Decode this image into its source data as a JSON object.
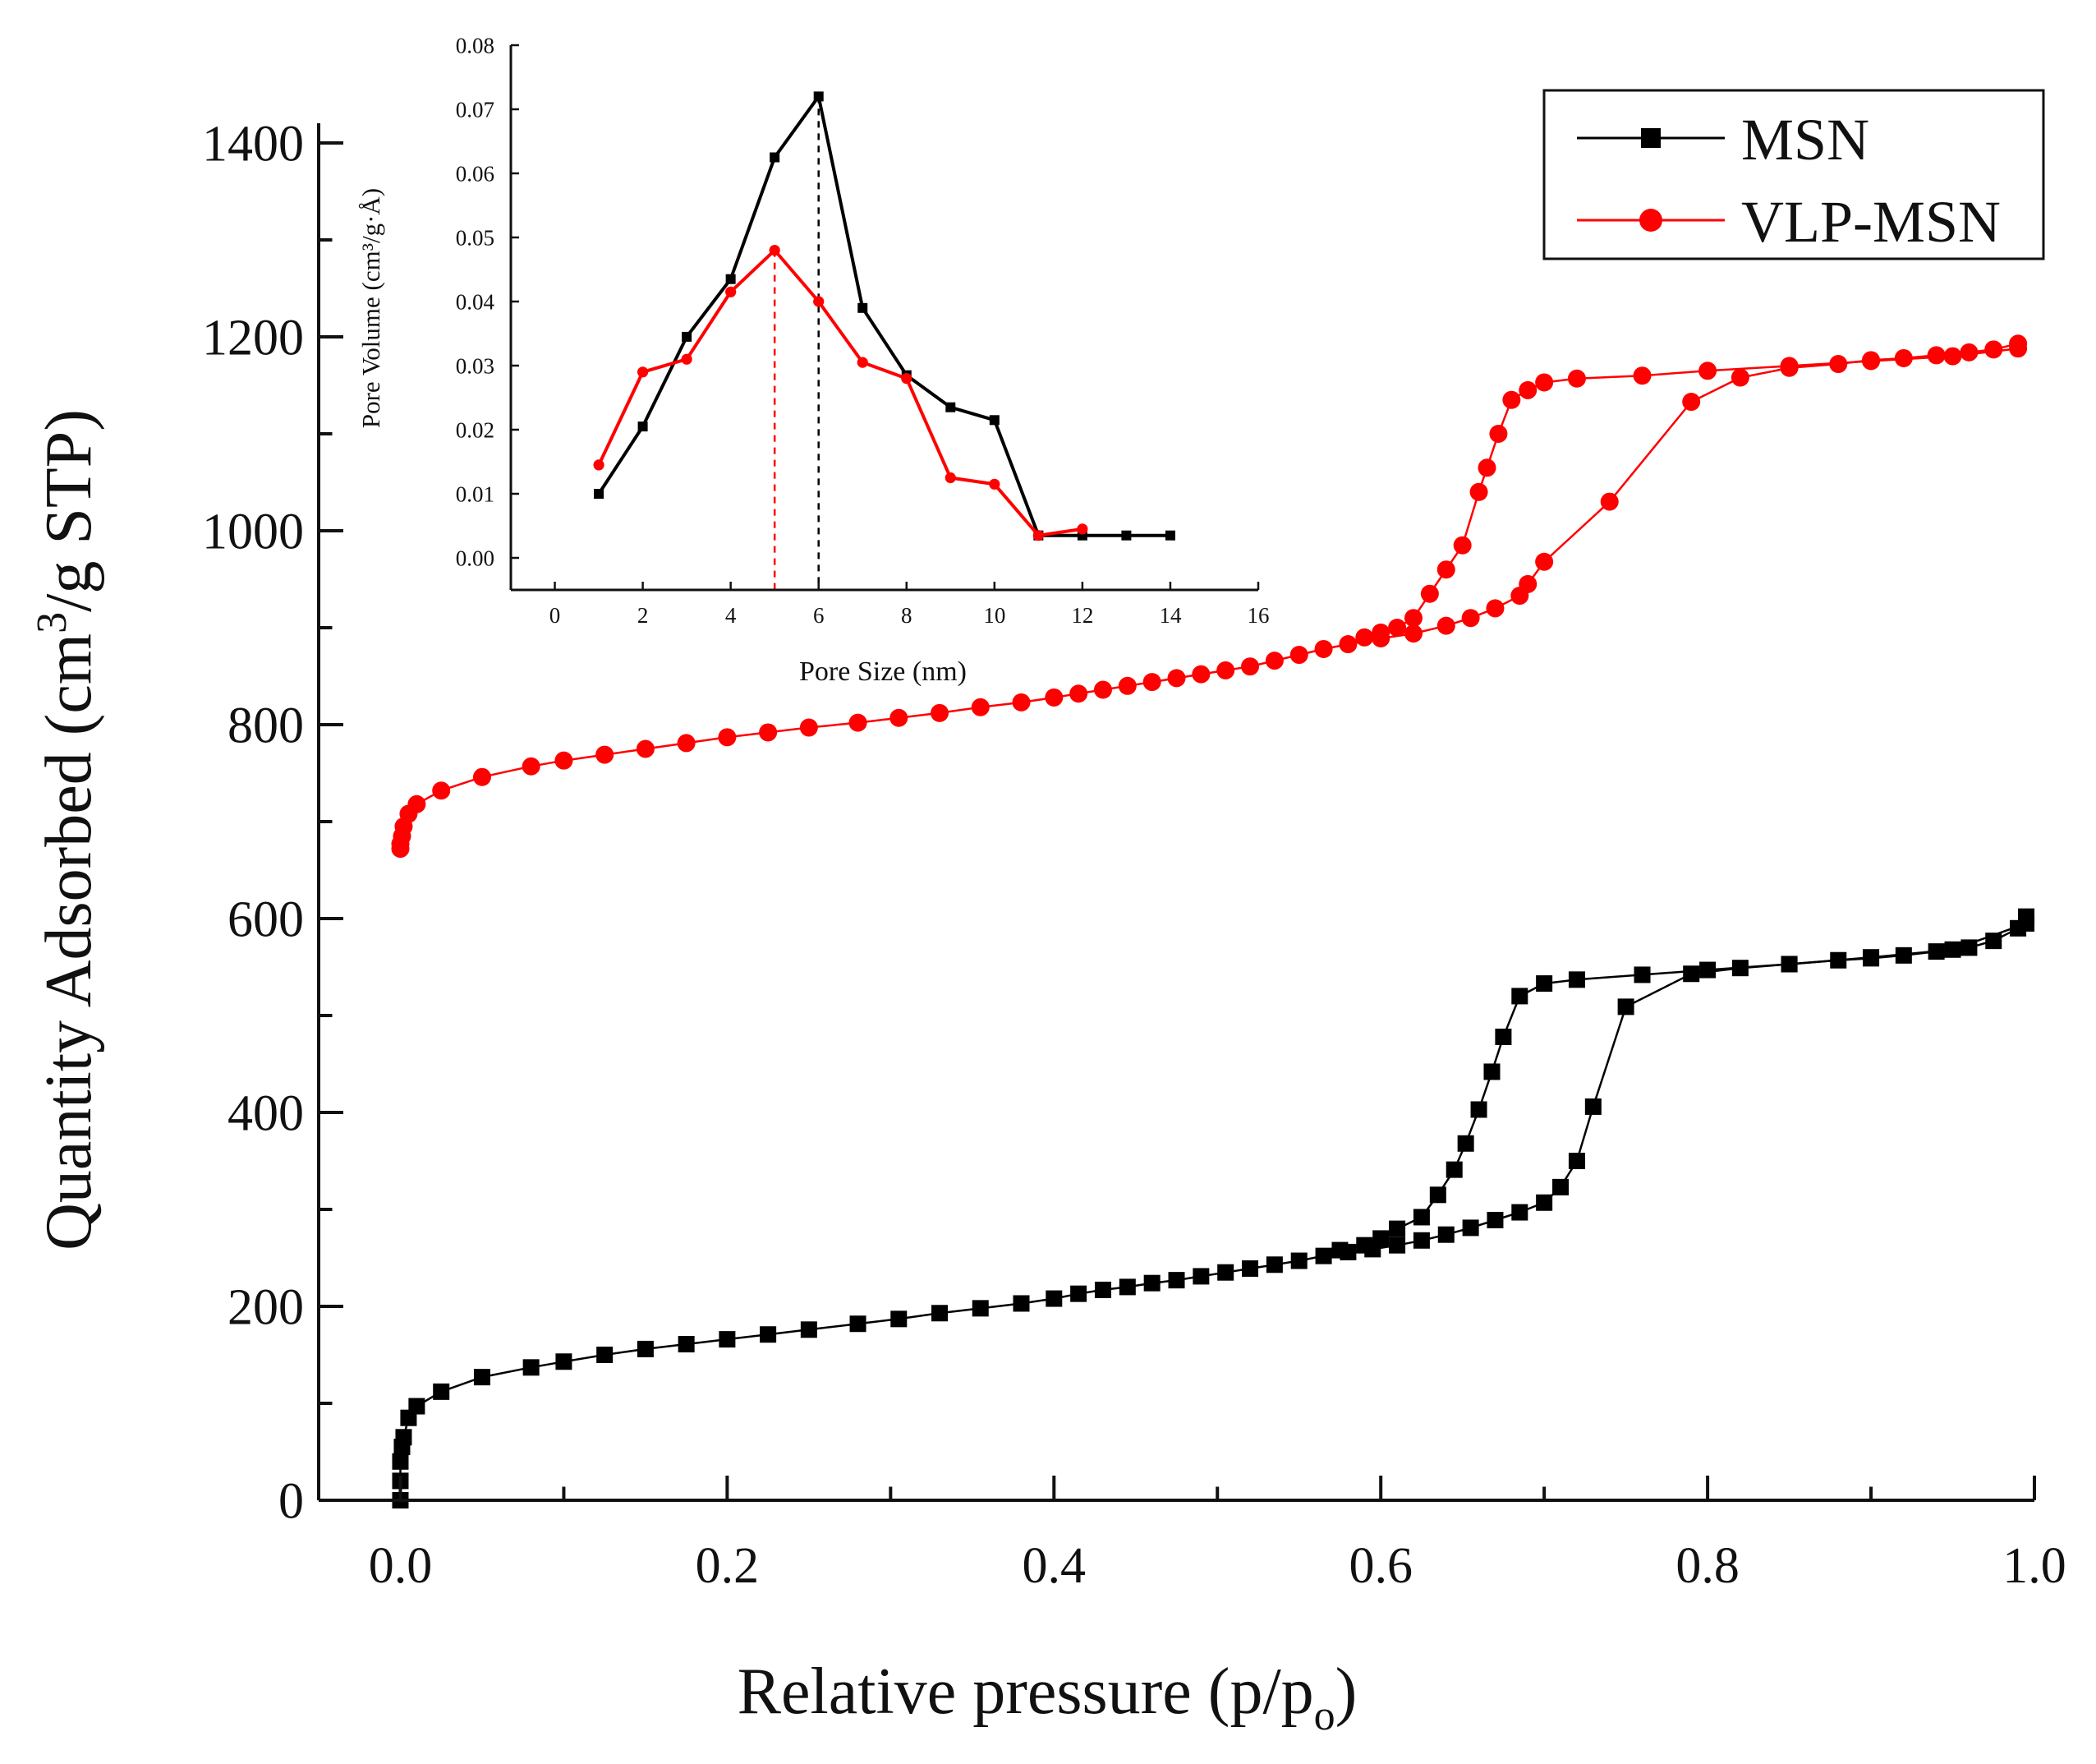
{
  "chart_data": [
    {
      "id": "main",
      "type": "scatter",
      "xlabel": "Relative pressure (p/p",
      "xlabel_sub": "o",
      "xlabel_tail": ")",
      "ylabel_pre": "Quantity Adsorbed (cm",
      "ylabel_sup": "3",
      "ylabel_post": "/g STP)",
      "xlim": [
        -0.05,
        1.0
      ],
      "ylim": [
        0,
        1400
      ],
      "xticks": [
        0.0,
        0.2,
        0.4,
        0.6,
        0.8,
        1.0
      ],
      "xtick_labels": [
        "0.0",
        "0.2",
        "0.4",
        "0.6",
        "0.8",
        "1.0"
      ],
      "yticks": [
        0,
        200,
        400,
        600,
        800,
        1000,
        1200,
        1400
      ],
      "ytick_labels": [
        "0",
        "200",
        "400",
        "600",
        "800",
        "1000",
        "1200",
        "1400"
      ],
      "legend_position": "top-right",
      "series": [
        {
          "name": "MSN",
          "color": "#000000",
          "marker": "square",
          "x": [
            0.0,
            0.0,
            0.0,
            0.001,
            0.002,
            0.005,
            0.01,
            0.025,
            0.05,
            0.08,
            0.1,
            0.125,
            0.15,
            0.175,
            0.2,
            0.225,
            0.25,
            0.28,
            0.305,
            0.33,
            0.355,
            0.38,
            0.4,
            0.415,
            0.43,
            0.445,
            0.46,
            0.475,
            0.49,
            0.505,
            0.52,
            0.535,
            0.55,
            0.565,
            0.58,
            0.595,
            0.61,
            0.625,
            0.64,
            0.655,
            0.67,
            0.685,
            0.7,
            0.71,
            0.72,
            0.73,
            0.75,
            0.79,
            0.82,
            0.85,
            0.88,
            0.9,
            0.92,
            0.94,
            0.96,
            0.975,
            0.99,
            0.995
          ],
          "y": [
            0,
            20,
            40,
            55,
            65,
            85,
            97,
            112,
            127,
            137,
            143,
            150,
            156,
            161,
            166,
            171,
            176,
            182,
            187,
            193,
            198,
            203,
            208,
            213,
            217,
            220,
            224,
            227,
            231,
            235,
            239,
            243,
            247,
            252,
            256,
            259,
            263,
            268,
            274,
            281,
            289,
            297,
            307,
            323,
            350,
            406,
            509,
            543,
            549,
            553,
            557,
            559,
            562,
            566,
            570,
            577,
            590,
            602
          ],
          "x_return": [
            0.995,
            0.95,
            0.9,
            0.85,
            0.8,
            0.76,
            0.72,
            0.7,
            0.685,
            0.675,
            0.668,
            0.66,
            0.652,
            0.645,
            0.635,
            0.625,
            0.61,
            0.6,
            0.59,
            0.575
          ],
          "y_return": [
            595,
            568,
            560,
            553,
            547,
            542,
            537,
            533,
            520,
            478,
            442,
            403,
            368,
            341,
            315,
            292,
            280,
            270,
            263,
            258
          ]
        },
        {
          "name": "VLP-MSN",
          "color": "#ff0000",
          "marker": "circle",
          "x": [
            0.0,
            0.0,
            0.001,
            0.002,
            0.005,
            0.01,
            0.025,
            0.05,
            0.08,
            0.1,
            0.125,
            0.15,
            0.175,
            0.2,
            0.225,
            0.25,
            0.28,
            0.305,
            0.33,
            0.355,
            0.38,
            0.4,
            0.415,
            0.43,
            0.445,
            0.46,
            0.475,
            0.49,
            0.505,
            0.52,
            0.535,
            0.55,
            0.565,
            0.58,
            0.6,
            0.62,
            0.64,
            0.655,
            0.67,
            0.685,
            0.69,
            0.7,
            0.74,
            0.79,
            0.82,
            0.85,
            0.88,
            0.9,
            0.92,
            0.94,
            0.96,
            0.975,
            0.99
          ],
          "y": [
            672,
            677,
            685,
            695,
            708,
            718,
            732,
            746,
            757,
            763,
            769,
            775,
            781,
            787,
            792,
            797,
            802,
            807,
            812,
            818,
            823,
            828,
            832,
            836,
            840,
            844,
            848,
            852,
            856,
            860,
            866,
            872,
            878,
            883,
            889,
            894,
            902,
            910,
            920,
            933,
            945,
            968,
            1030,
            1133,
            1158,
            1168,
            1172,
            1176,
            1178,
            1181,
            1184,
            1187,
            1193
          ],
          "x_return": [
            0.99,
            0.95,
            0.9,
            0.85,
            0.8,
            0.76,
            0.72,
            0.7,
            0.69,
            0.68,
            0.672,
            0.665,
            0.66,
            0.65,
            0.64,
            0.63,
            0.62,
            0.61,
            0.6,
            0.59
          ],
          "y_return": [
            1188,
            1180,
            1175,
            1170,
            1165,
            1160,
            1157,
            1153,
            1145,
            1135,
            1100,
            1065,
            1040,
            985,
            960,
            935,
            910,
            900,
            895,
            890
          ]
        }
      ]
    },
    {
      "id": "inset",
      "type": "line",
      "xlabel": "Pore Size (nm)",
      "ylabel": "Pore Volume (cm³/g·Å)",
      "xlim": [
        -1,
        16
      ],
      "ylim": [
        -0.005,
        0.08
      ],
      "xticks": [
        0,
        2,
        4,
        6,
        8,
        10,
        12,
        14,
        16
      ],
      "xtick_labels": [
        "0",
        "2",
        "4",
        "6",
        "8",
        "10",
        "12",
        "14",
        "16"
      ],
      "yticks": [
        0.0,
        0.01,
        0.02,
        0.03,
        0.04,
        0.05,
        0.06,
        0.07,
        0.08
      ],
      "ytick_labels": [
        "0.00",
        "0.01",
        "0.02",
        "0.03",
        "0.04",
        "0.05",
        "0.06",
        "0.07",
        "0.08"
      ],
      "series": [
        {
          "name": "MSN",
          "color": "#000000",
          "marker": "square",
          "x": [
            1,
            2,
            3,
            4,
            5,
            6,
            7,
            8,
            9,
            10,
            11,
            12,
            13,
            14
          ],
          "y": [
            0.01,
            0.0205,
            0.0345,
            0.0435,
            0.0625,
            0.072,
            0.039,
            0.0285,
            0.0235,
            0.0215,
            0.0035,
            0.0035,
            0.0035,
            0.0035
          ],
          "peak_x": 6,
          "peak_y": 0.072
        },
        {
          "name": "VLP-MSN",
          "color": "#ff0000",
          "marker": "circle",
          "x": [
            1,
            2,
            3,
            4,
            5,
            6,
            7,
            8,
            9,
            10,
            11,
            12
          ],
          "y": [
            0.0145,
            0.029,
            0.031,
            0.0415,
            0.048,
            0.04,
            0.0305,
            0.028,
            0.0125,
            0.0115,
            0.0035,
            0.0045
          ],
          "peak_x": 5,
          "peak_y": 0.048
        }
      ]
    }
  ]
}
